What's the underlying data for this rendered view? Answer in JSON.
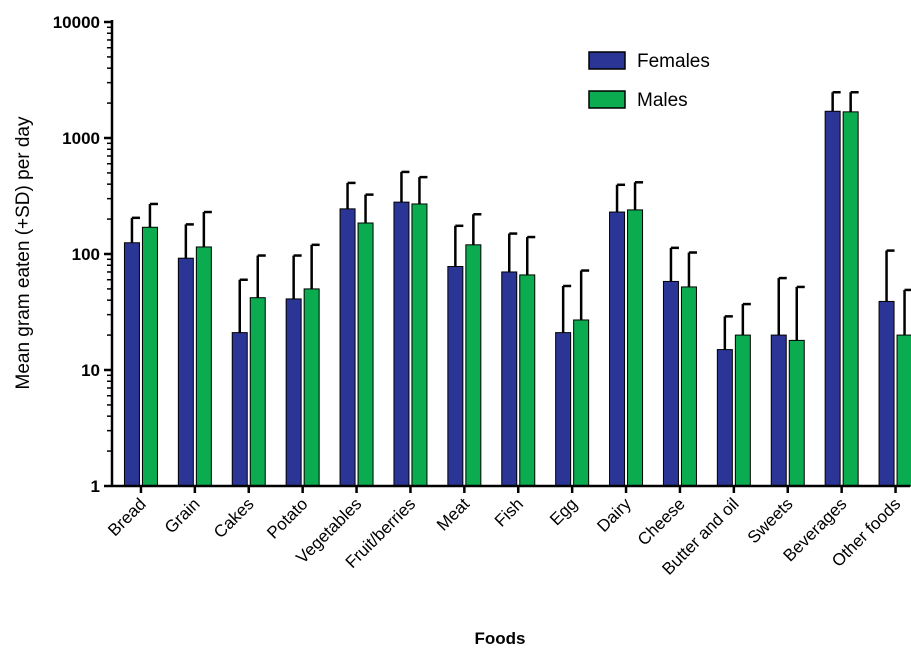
{
  "chart_data": {
    "type": "bar",
    "title": "",
    "xlabel": "Foods",
    "ylabel": "Mean gram eaten (+SD) per day",
    "yscale": "log",
    "ylim": [
      1,
      10000
    ],
    "yticks": [
      1,
      10,
      100,
      1000,
      10000
    ],
    "ytick_labels": [
      "1",
      "10",
      "100",
      "1000",
      "10000"
    ],
    "legend_position": "top-right",
    "categories": [
      "Bread",
      "Grain",
      "Cakes",
      "Potato",
      "Vegetables",
      "Fruit/berries",
      "Meat",
      "Fish",
      "Egg",
      "Dairy",
      "Cheese",
      "Butter and oil",
      "Sweets",
      "Beverages",
      "Other foods"
    ],
    "series": [
      {
        "name": "Females",
        "color": "#2b3595",
        "values": [
          125,
          92,
          21,
          41,
          245,
          280,
          78,
          70,
          21,
          230,
          58,
          15,
          20,
          1700,
          39
        ],
        "error_upper": [
          205,
          180,
          60,
          97,
          410,
          510,
          175,
          150,
          53,
          395,
          113,
          29,
          62,
          2480,
          107
        ]
      },
      {
        "name": "Males",
        "color": "#0bab4f",
        "values": [
          170,
          115,
          42,
          50,
          185,
          270,
          120,
          66,
          27,
          240,
          52,
          20,
          18,
          1680,
          20
        ],
        "error_upper": [
          270,
          230,
          97,
          120,
          325,
          460,
          220,
          140,
          72,
          415,
          103,
          37,
          52,
          2480,
          49
        ]
      }
    ]
  }
}
